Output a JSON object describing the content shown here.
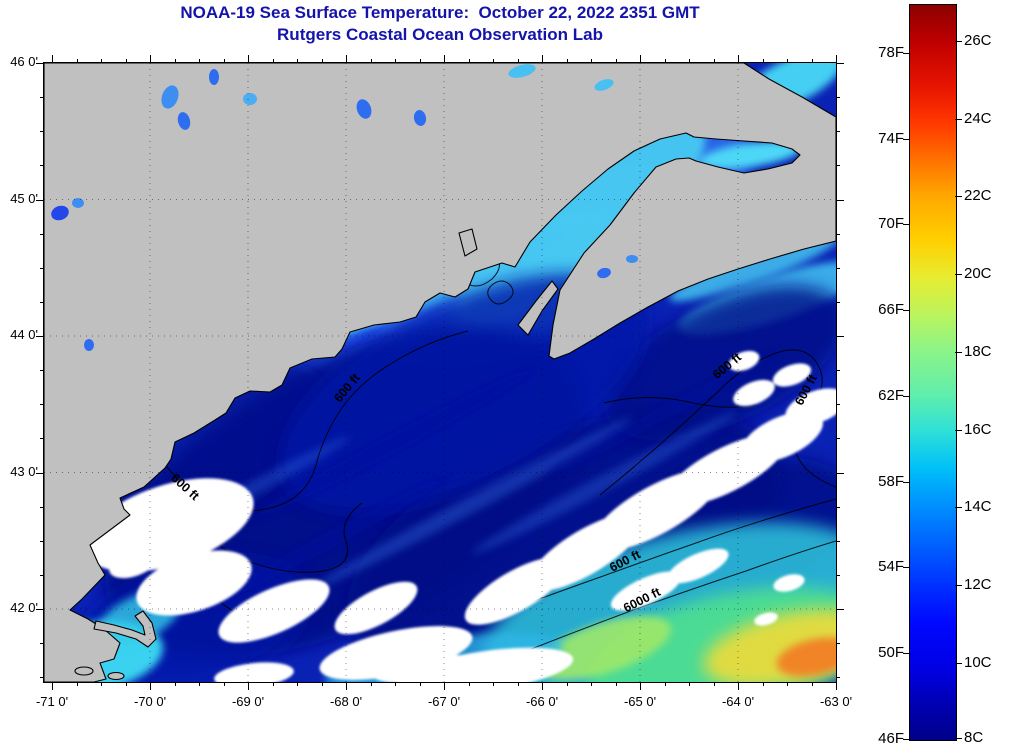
{
  "title": {
    "line1": "NOAA-19 Sea Surface Temperature:  October 22, 2022 2351 GMT",
    "line2": "Rutgers Coastal Ocean Observation Lab"
  },
  "map": {
    "lat_tick_labels": [
      "46 0'",
      "45 0'",
      "44 0'",
      "43 0'",
      "42 0'"
    ],
    "lon_tick_labels": [
      "-71 0'",
      "-70 0'",
      "-69 0'",
      "-68 0'",
      "-67 0'",
      "-66 0'",
      "-65 0'",
      "-64 0'",
      "-63 0'"
    ],
    "contour_labels": [
      "600 ft",
      "600 ft",
      "600 ft",
      "600 ft",
      "600 ft",
      "6000 ft"
    ]
  },
  "colorbar": {
    "fahrenheit_labels": [
      "78F",
      "74F",
      "70F",
      "66F",
      "62F",
      "58F",
      "54F",
      "50F",
      "46F"
    ],
    "celsius_labels": [
      "26C",
      "24C",
      "22C",
      "20C",
      "18C",
      "16C",
      "14C",
      "12C",
      "10C",
      "8C"
    ],
    "gradient_stops": [
      [
        "0%",
        "#000089"
      ],
      [
        "5%",
        "#0000B4"
      ],
      [
        "10%",
        "#0000E6"
      ],
      [
        "16%",
        "#0008FF"
      ],
      [
        "21%",
        "#0030FF"
      ],
      [
        "26%",
        "#005CFF"
      ],
      [
        "32%",
        "#0090FF"
      ],
      [
        "37%",
        "#00C0F8"
      ],
      [
        "42%",
        "#2EE0D8"
      ],
      [
        "47%",
        "#60EEAC"
      ],
      [
        "53%",
        "#8CF488"
      ],
      [
        "58%",
        "#BCF45C"
      ],
      [
        "63%",
        "#E8EC30"
      ],
      [
        "68%",
        "#FFD000"
      ],
      [
        "74%",
        "#FFA800"
      ],
      [
        "79%",
        "#FF7000"
      ],
      [
        "84%",
        "#FF3800"
      ],
      [
        "89%",
        "#E61400"
      ],
      [
        "95%",
        "#BE0000"
      ],
      [
        "100%",
        "#8C0000"
      ]
    ]
  },
  "colors": {
    "title_text": "#1414AA",
    "axis_text": "#000000",
    "land": "#C0C0C0",
    "coastline": "#000000",
    "ocean_base": "#0A22B4",
    "ocean_dark": "#000886",
    "ocean_mid": "#2257EC",
    "coastal_cyan": "#47C6F3",
    "cloud": "#FFFFFF",
    "warm_green": "#4FE08E",
    "warm_yellow": "#E8DC3E",
    "warm_orange": "#F08428"
  }
}
